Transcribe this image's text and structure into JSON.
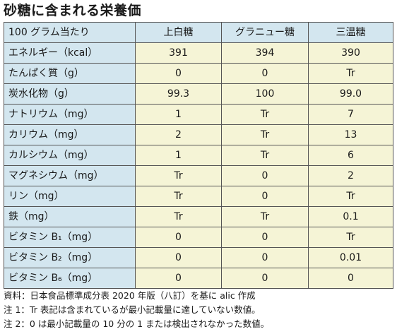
{
  "title": "砂糖に含まれる栄養価",
  "table": {
    "columns": [
      "100 グラム当たり",
      "上白糖",
      "グラニュー糖",
      "三温糖"
    ],
    "rows": [
      {
        "label": "エネルギー（kcal）",
        "values": [
          "391",
          "394",
          "390"
        ]
      },
      {
        "label": "たんぱく質（g）",
        "values": [
          "0",
          "0",
          "Tr"
        ]
      },
      {
        "label": "炭水化物（g）",
        "values": [
          "99.3",
          "100",
          "99.0"
        ]
      },
      {
        "label": "ナトリウム（mg）",
        "values": [
          "1",
          "Tr",
          "7"
        ]
      },
      {
        "label": "カリウム（mg）",
        "values": [
          "2",
          "Tr",
          "13"
        ]
      },
      {
        "label": "カルシウム（mg）",
        "values": [
          "1",
          "Tr",
          "6"
        ]
      },
      {
        "label": "マグネシウム（mg）",
        "values": [
          "Tr",
          "0",
          "2"
        ]
      },
      {
        "label": "リン（mg）",
        "values": [
          "Tr",
          "0",
          "Tr"
        ]
      },
      {
        "label": "鉄（mg）",
        "values": [
          "Tr",
          "Tr",
          "0.1"
        ]
      },
      {
        "label": "ビタミン B₁（mg）",
        "values": [
          "0",
          "0",
          "Tr"
        ]
      },
      {
        "label": "ビタミン B₂（mg）",
        "values": [
          "0",
          "0",
          "0.01"
        ]
      },
      {
        "label": "ビタミン B₆（mg）",
        "values": [
          "0",
          "0",
          "0"
        ]
      }
    ]
  },
  "notes": [
    "資料：日本食品標準成分表 2020 年版（八訂）を基に alic 作成",
    "注 1：Tr 表記は含まれているが最小記載量に達していない数値。",
    "注 2：0 は最小記載量の 10 分の 1 または検出されなかった数値。"
  ],
  "colors": {
    "header_bg": "#d3e6ef",
    "cell_bg": "#f5f4d6",
    "border": "#555555"
  }
}
